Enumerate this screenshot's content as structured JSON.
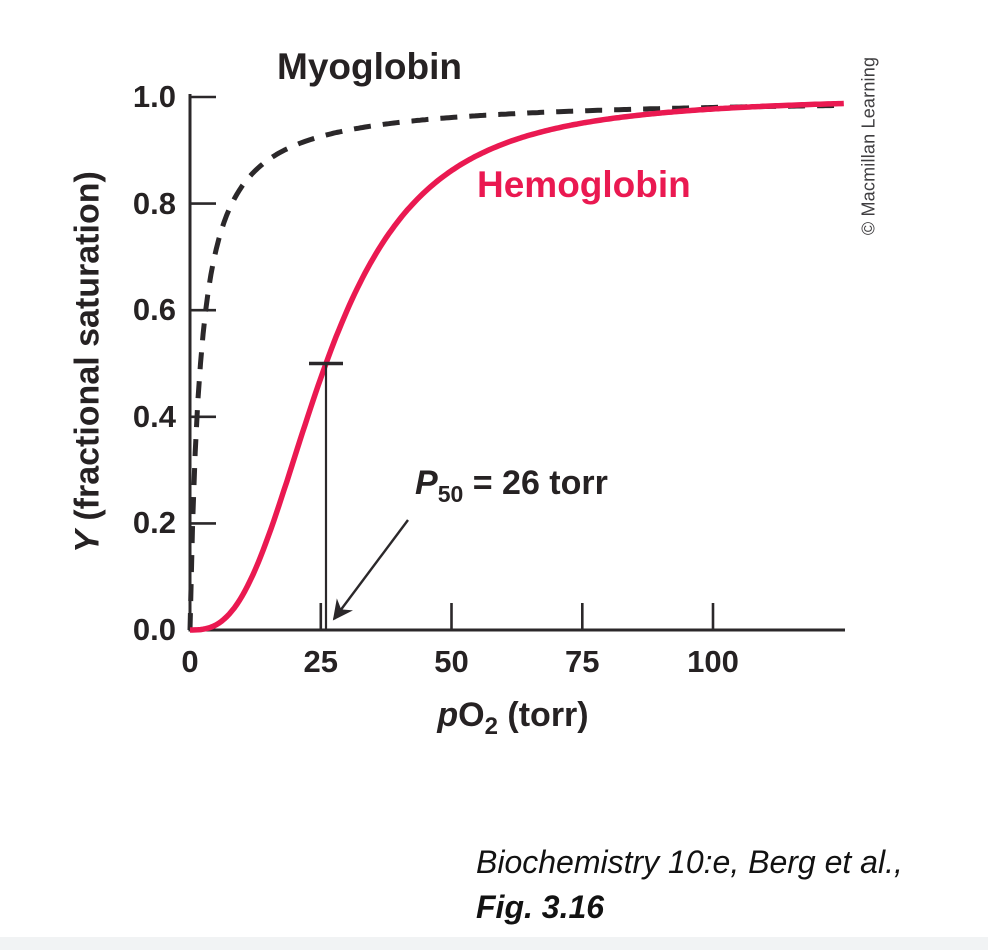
{
  "figure": {
    "copyright": "© Macmillan Learning",
    "citation": {
      "line1": "Biochemistry 10:e, Berg et al.,",
      "line2": "Fig. 3.16"
    }
  },
  "colors": {
    "ink": "#2b282a",
    "hemoglobin_accent": "#ea1951",
    "bottom_strip": "#f1f3f4"
  },
  "chart_data": {
    "type": "line",
    "xlabel": {
      "italic": "p",
      "main": "O",
      "sub": "2",
      "suffix": " (torr)"
    },
    "ylabel": {
      "italic": "Y",
      "suffix": " (fractional saturation)"
    },
    "xlim": [
      0,
      125
    ],
    "ylim": [
      0,
      1.0
    ],
    "grid": false,
    "legend": "labels-beside-curves",
    "x_ticks": {
      "values": [
        0,
        25,
        50,
        75,
        100
      ],
      "labels": [
        "0",
        "25",
        "50",
        "75",
        "100"
      ]
    },
    "y_ticks": {
      "values": [
        0,
        0.2,
        0.4,
        0.6,
        0.8,
        1.0
      ],
      "labels": [
        "0.0",
        "0.2",
        "0.4",
        "0.6",
        "0.8",
        "1.0"
      ]
    },
    "series": [
      {
        "name": "Myoglobin",
        "line_style": "dashed",
        "color": "#2b282a",
        "model": {
          "type": "hill",
          "p50_torr": 2,
          "hill_n": 1
        },
        "points": {
          "x": [
            0,
            1,
            2,
            3,
            4,
            5,
            7.5,
            10,
            15,
            20,
            25,
            26,
            30,
            35,
            40,
            50,
            60,
            70,
            80,
            90,
            100,
            110,
            125
          ],
          "y": [
            0,
            0.333,
            0.5,
            0.6,
            0.667,
            0.714,
            0.789,
            0.833,
            0.882,
            0.909,
            0.926,
            0.929,
            0.938,
            0.946,
            0.952,
            0.962,
            0.968,
            0.972,
            0.976,
            0.978,
            0.98,
            0.982,
            0.984
          ]
        }
      },
      {
        "name": "Hemoglobin",
        "line_style": "solid",
        "color": "#ea1951",
        "model": {
          "type": "hill",
          "p50_torr": 26,
          "hill_n": 2.8
        },
        "points": {
          "x": [
            0,
            1,
            2,
            3,
            4,
            5,
            7.5,
            10,
            15,
            20,
            25,
            26,
            30,
            35,
            40,
            50,
            60,
            70,
            80,
            90,
            100,
            110,
            125
          ],
          "y": [
            0,
            0.0,
            0.001,
            0.002,
            0.005,
            0.01,
            0.03,
            0.064,
            0.176,
            0.324,
            0.473,
            0.5,
            0.599,
            0.697,
            0.77,
            0.862,
            0.912,
            0.941,
            0.959,
            0.97,
            0.978,
            0.983,
            0.988
          ]
        }
      }
    ],
    "annotation": {
      "label_italic": "P",
      "label_sub": "50",
      "label_rest": " = 26 torr",
      "x": 26,
      "y": 0.5
    }
  }
}
